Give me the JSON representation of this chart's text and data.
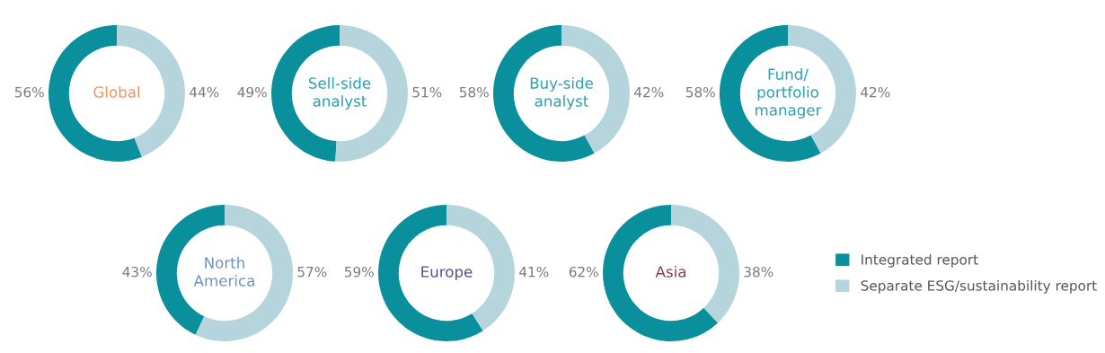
{
  "chart_data": [
    {
      "type": "donut",
      "title": "Global",
      "categories": [
        "Integrated report",
        "Separate ESG/sustainability report"
      ],
      "values": [
        56,
        44
      ],
      "colors": [
        "#0a8f9c",
        "#b5d4dc"
      ],
      "value_labels": [
        "56%",
        "44%"
      ],
      "legend": "bottom right"
    },
    {
      "type": "donut",
      "title": "Sell-side\nanalyst",
      "values": [
        49,
        51
      ],
      "colors": [
        "#0a8f9c",
        "#b5d4dc"
      ],
      "value_labels": [
        "49%",
        "51%"
      ]
    },
    {
      "type": "donut",
      "title": "Buy-side\nanalyst",
      "values": [
        58,
        42
      ],
      "colors": [
        "#0a8f9c",
        "#b5d4dc"
      ],
      "value_labels": [
        "58%",
        "42%"
      ]
    },
    {
      "type": "donut",
      "title": "Fund/\nportfolio\nmanager",
      "values": [
        58,
        42
      ],
      "colors": [
        "#0a8f9c",
        "#b5d4dc"
      ],
      "value_labels": [
        "58%",
        "42%"
      ]
    },
    {
      "type": "donut",
      "title": "North\nAmerica",
      "values": [
        43,
        57
      ],
      "colors": [
        "#0a8f9c",
        "#b5d4dc"
      ],
      "value_labels": [
        "43%",
        "57%"
      ]
    },
    {
      "type": "donut",
      "title": "Europe",
      "values": [
        59,
        41
      ],
      "colors": [
        "#0a8f9c",
        "#b5d4dc"
      ],
      "value_labels": [
        "59%",
        "41%"
      ]
    },
    {
      "type": "donut",
      "title": "Asia",
      "values": [
        62,
        38
      ],
      "colors": [
        "#0a8f9c",
        "#b5d4dc"
      ],
      "value_labels": [
        "62%",
        "38%"
      ]
    }
  ]
}
